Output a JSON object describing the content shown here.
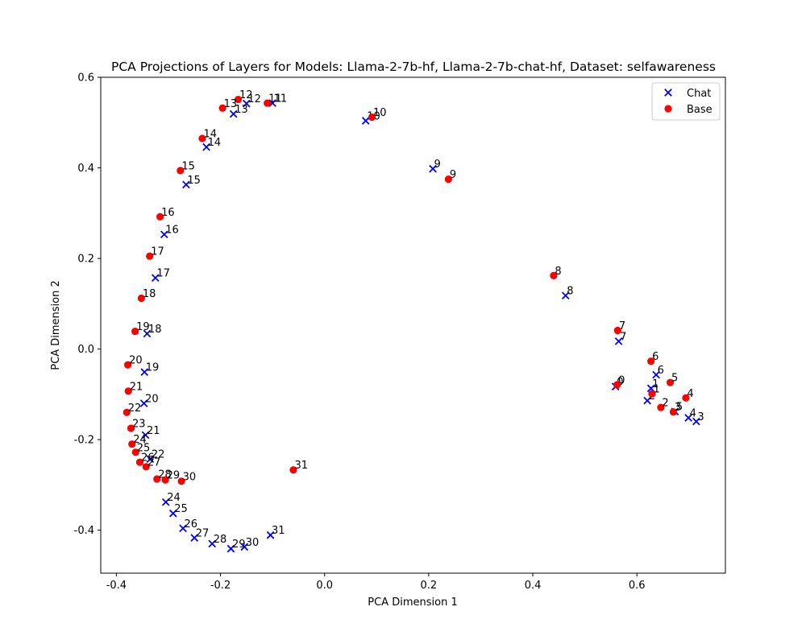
{
  "chart_data": {
    "type": "scatter",
    "title": "PCA Projections of Layers for Models: Llama-2-7b-hf, Llama-2-7b-chat-hf, Dataset: selfawareness",
    "xlabel": "PCA Dimension 1",
    "ylabel": "PCA Dimension 2",
    "xlim": [
      -0.43,
      0.77
    ],
    "ylim": [
      -0.495,
      0.6
    ],
    "xticks": [
      -0.4,
      -0.2,
      0.0,
      0.2,
      0.4,
      0.6
    ],
    "yticks": [
      -0.4,
      -0.2,
      0.0,
      0.2,
      0.4,
      0.6
    ],
    "grid": false,
    "legend_position": "top-right",
    "series": [
      {
        "name": "Chat",
        "marker": "x",
        "color": "#0000ff",
        "points": [
          {
            "label": "0",
            "x": 0.559,
            "y": -0.083
          },
          {
            "label": "1",
            "x": 0.627,
            "y": -0.087
          },
          {
            "label": "2",
            "x": 0.62,
            "y": -0.114
          },
          {
            "label": "3",
            "x": 0.714,
            "y": -0.16
          },
          {
            "label": "4",
            "x": 0.699,
            "y": -0.152
          },
          {
            "label": "5",
            "x": 0.673,
            "y": -0.138
          },
          {
            "label": "6",
            "x": 0.637,
            "y": -0.057
          },
          {
            "label": "7",
            "x": 0.565,
            "y": 0.017
          },
          {
            "label": "8",
            "x": 0.463,
            "y": 0.118
          },
          {
            "label": "9",
            "x": 0.208,
            "y": 0.398
          },
          {
            "label": "10",
            "x": 0.079,
            "y": 0.504
          },
          {
            "label": "11",
            "x": -0.1,
            "y": 0.543
          },
          {
            "label": "12",
            "x": -0.15,
            "y": 0.542
          },
          {
            "label": "13",
            "x": -0.175,
            "y": 0.519
          },
          {
            "label": "14",
            "x": -0.227,
            "y": 0.446
          },
          {
            "label": "15",
            "x": -0.266,
            "y": 0.363
          },
          {
            "label": "16",
            "x": -0.308,
            "y": 0.253
          },
          {
            "label": "17",
            "x": -0.325,
            "y": 0.157
          },
          {
            "label": "18",
            "x": -0.341,
            "y": 0.034
          },
          {
            "label": "19",
            "x": -0.346,
            "y": -0.051
          },
          {
            "label": "20",
            "x": -0.347,
            "y": -0.12
          },
          {
            "label": "21",
            "x": -0.344,
            "y": -0.19
          },
          {
            "label": "22",
            "x": -0.335,
            "y": -0.243
          },
          {
            "label": "24",
            "x": -0.305,
            "y": -0.338
          },
          {
            "label": "25",
            "x": -0.291,
            "y": -0.363
          },
          {
            "label": "26",
            "x": -0.272,
            "y": -0.396
          },
          {
            "label": "27",
            "x": -0.25,
            "y": -0.417
          },
          {
            "label": "28",
            "x": -0.216,
            "y": -0.43
          },
          {
            "label": "29",
            "x": -0.18,
            "y": -0.441
          },
          {
            "label": "30",
            "x": -0.154,
            "y": -0.437
          },
          {
            "label": "31",
            "x": -0.104,
            "y": -0.411
          }
        ]
      },
      {
        "name": "Base",
        "marker": "o",
        "color": "#ff0000",
        "points": [
          {
            "label": "0",
            "x": 0.562,
            "y": -0.079
          },
          {
            "label": "1",
            "x": 0.629,
            "y": -0.099
          },
          {
            "label": "2",
            "x": 0.646,
            "y": -0.129
          },
          {
            "label": "3",
            "x": 0.67,
            "y": -0.139
          },
          {
            "label": "4",
            "x": 0.694,
            "y": -0.108
          },
          {
            "label": "5",
            "x": 0.664,
            "y": -0.074
          },
          {
            "label": "6",
            "x": 0.627,
            "y": -0.027
          },
          {
            "label": "7",
            "x": 0.563,
            "y": 0.041
          },
          {
            "label": "8",
            "x": 0.44,
            "y": 0.162
          },
          {
            "label": "9",
            "x": 0.238,
            "y": 0.375
          },
          {
            "label": "10",
            "x": 0.091,
            "y": 0.512
          },
          {
            "label": "11",
            "x": -0.11,
            "y": 0.543
          },
          {
            "label": "12",
            "x": -0.166,
            "y": 0.551
          },
          {
            "label": "13",
            "x": -0.196,
            "y": 0.532
          },
          {
            "label": "14",
            "x": -0.235,
            "y": 0.465
          },
          {
            "label": "15",
            "x": -0.277,
            "y": 0.394
          },
          {
            "label": "16",
            "x": -0.316,
            "y": 0.292
          },
          {
            "label": "17",
            "x": -0.336,
            "y": 0.205
          },
          {
            "label": "18",
            "x": -0.352,
            "y": 0.112
          },
          {
            "label": "19",
            "x": -0.364,
            "y": 0.039
          },
          {
            "label": "20",
            "x": -0.378,
            "y": -0.035
          },
          {
            "label": "21",
            "x": -0.377,
            "y": -0.093
          },
          {
            "label": "22",
            "x": -0.38,
            "y": -0.14
          },
          {
            "label": "23",
            "x": -0.372,
            "y": -0.175
          },
          {
            "label": "24",
            "x": -0.37,
            "y": -0.21
          },
          {
            "label": "25",
            "x": -0.363,
            "y": -0.228
          },
          {
            "label": "26",
            "x": -0.355,
            "y": -0.25
          },
          {
            "label": "27",
            "x": -0.343,
            "y": -0.26
          },
          {
            "label": "28",
            "x": -0.322,
            "y": -0.287
          },
          {
            "label": "29",
            "x": -0.306,
            "y": -0.289
          },
          {
            "label": "30",
            "x": -0.275,
            "y": -0.292
          },
          {
            "label": "31",
            "x": -0.06,
            "y": -0.267
          }
        ]
      }
    ]
  }
}
